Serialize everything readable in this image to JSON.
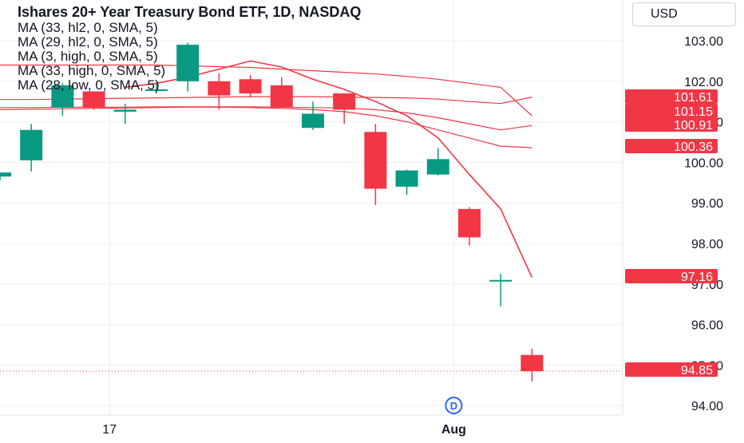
{
  "title": "Ishares 20+ Year Treasury Bond ETF, 1D, NASDAQ",
  "currency": "USD",
  "colors": {
    "up": "#089981",
    "down": "#f23645",
    "ma": "#f23645",
    "grid": "#eef0f3",
    "text": "#131722"
  },
  "chart_data": {
    "type": "candlestick",
    "ylim": [
      93.8,
      103.4
    ],
    "y_ticks": [
      "94.00",
      "95.00",
      "96.00",
      "97.00",
      "98.00",
      "99.00",
      "100.00",
      "101.00",
      "102.00",
      "103.00"
    ],
    "x_tick_labels": [
      {
        "index": 3.5,
        "label": "17"
      },
      {
        "index": 14.5,
        "label": "Aug"
      }
    ],
    "candles": [
      {
        "o": 99.65,
        "h": 99.75,
        "l": 99.55,
        "c": 99.75
      },
      {
        "o": 100.05,
        "h": 100.95,
        "l": 99.78,
        "c": 100.8
      },
      {
        "o": 101.35,
        "h": 101.95,
        "l": 101.15,
        "c": 101.9
      },
      {
        "o": 101.75,
        "h": 101.75,
        "l": 101.3,
        "c": 101.35
      },
      {
        "o": 101.25,
        "h": 101.45,
        "l": 100.95,
        "c": 101.3
      },
      {
        "o": 101.8,
        "h": 101.95,
        "l": 101.7,
        "c": 101.8
      },
      {
        "o": 102.0,
        "h": 102.95,
        "l": 101.75,
        "c": 102.9
      },
      {
        "o": 102.0,
        "h": 102.2,
        "l": 101.3,
        "c": 101.65
      },
      {
        "o": 102.05,
        "h": 102.15,
        "l": 101.6,
        "c": 101.7
      },
      {
        "o": 101.9,
        "h": 102.1,
        "l": 101.35,
        "c": 101.35
      },
      {
        "o": 100.85,
        "h": 101.5,
        "l": 100.8,
        "c": 101.2
      },
      {
        "o": 101.7,
        "h": 101.7,
        "l": 100.95,
        "c": 101.3
      },
      {
        "o": 100.75,
        "h": 100.95,
        "l": 98.95,
        "c": 99.35
      },
      {
        "o": 99.4,
        "h": 99.82,
        "l": 99.2,
        "c": 99.8
      },
      {
        "o": 99.7,
        "h": 100.35,
        "l": 99.68,
        "c": 100.08
      },
      {
        "o": 98.85,
        "h": 98.9,
        "l": 97.95,
        "c": 98.15
      },
      {
        "o": 97.1,
        "h": 97.25,
        "l": 96.45,
        "c": 97.1
      },
      {
        "o": 95.25,
        "h": 95.4,
        "l": 94.6,
        "c": 94.85
      }
    ],
    "series": [
      {
        "name": "MA (33, hl2, 0, SMA, 5)",
        "values": [
          101.55,
          101.55,
          101.56,
          101.57,
          101.58,
          101.59,
          101.6,
          101.61,
          101.62,
          101.62,
          101.62,
          101.61,
          101.6,
          101.59,
          101.56,
          101.5,
          101.45,
          101.61
        ]
      },
      {
        "name": "MA (29, hl2, 0, SMA, 5)",
        "values": [
          101.35,
          101.35,
          101.36,
          101.36,
          101.36,
          101.37,
          101.37,
          101.37,
          101.37,
          101.36,
          101.35,
          101.34,
          101.3,
          101.22,
          101.1,
          100.95,
          100.8,
          100.91
        ]
      },
      {
        "name": "MA (3, high, 0, SMA, 5)",
        "values": [
          null,
          null,
          null,
          null,
          101.85,
          101.95,
          102.1,
          102.3,
          102.5,
          102.35,
          102.05,
          101.8,
          101.5,
          101.15,
          100.6,
          99.7,
          98.85,
          97.16
        ]
      },
      {
        "name": "MA (33, high, 0, SMA, 5)",
        "values": [
          102.4,
          102.4,
          102.4,
          102.4,
          102.4,
          102.4,
          102.38,
          102.36,
          102.34,
          102.3,
          102.26,
          102.22,
          102.18,
          102.12,
          102.05,
          101.95,
          101.85,
          101.15
        ]
      },
      {
        "name": "MA (28, low, 0, SMA, 5)",
        "values": [
          101.3,
          101.31,
          101.32,
          101.33,
          101.34,
          101.35,
          101.36,
          101.36,
          101.35,
          101.33,
          101.3,
          101.25,
          101.15,
          101.0,
          100.8,
          100.6,
          100.4,
          100.36
        ]
      }
    ],
    "price_labels": [
      "101.61",
      "101.15",
      "100.91",
      "100.36",
      "97.16",
      "94.85"
    ],
    "last_price": 94.85,
    "event_marker": {
      "index": 14.5,
      "label": "D"
    }
  }
}
